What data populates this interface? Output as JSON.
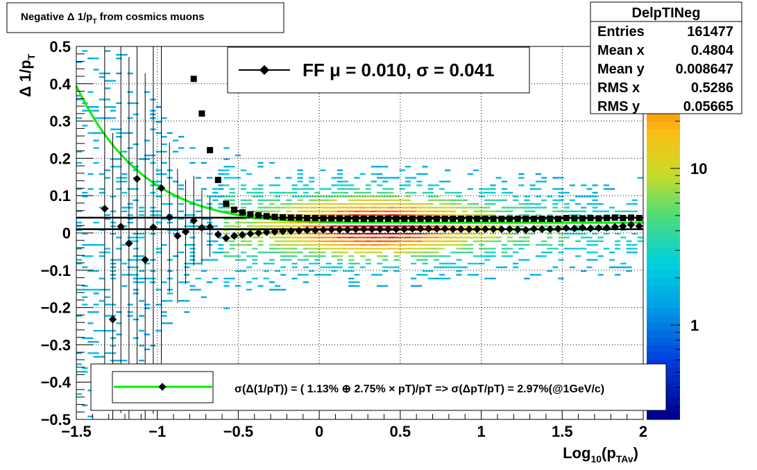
{
  "title_box": {
    "text_main": "Negative Δ 1/p",
    "text_sub": "T",
    "text_tail": " from cosmics muons"
  },
  "stats": {
    "name": "DelpTINeg",
    "rows": [
      {
        "label": "Entries",
        "value": "161477"
      },
      {
        "label": "Mean x",
        "value": "0.4804"
      },
      {
        "label": "Mean y",
        "value": "0.008647"
      },
      {
        "label": "RMS x",
        "value": "0.5286"
      },
      {
        "label": "RMS y",
        "value": "0.05665"
      }
    ]
  },
  "fit_legend": {
    "text": "FF μ =  0.010, σ =   0.041"
  },
  "resolution_legend": {
    "text": "σ(Δ(1/pT)) = ( 1.13% ⊕  2.75% × pT)/pT => σ(ΔpT/pT) =  2.97%(@1GeV/c)"
  },
  "axes": {
    "x_label_main": "Log",
    "x_label_sub1": "10",
    "x_label_mid": "(p",
    "x_label_sub2": "TAv",
    "x_label_end": ")",
    "y_label_main": "Δ 1/p",
    "y_label_sub": "T"
  },
  "colors": {
    "fit_curve": "#00ee00",
    "markers": "#000000",
    "frame": "#000000"
  },
  "chart_data": {
    "type": "heatmap",
    "x_range": [
      -1.5,
      2.0
    ],
    "y_range": [
      -0.5,
      0.5
    ],
    "x_ticks": [
      {
        "v": -1.5,
        "label": "−1.5"
      },
      {
        "v": -1.0,
        "label": "−1"
      },
      {
        "v": -0.5,
        "label": "−0.5"
      },
      {
        "v": 0.0,
        "label": "0"
      },
      {
        "v": 0.5,
        "label": "0.5"
      },
      {
        "v": 1.0,
        "label": "1"
      },
      {
        "v": 1.5,
        "label": "1.5"
      },
      {
        "v": 2.0,
        "label": "2"
      }
    ],
    "y_ticks": [
      {
        "v": 0.5,
        "label": "0.5"
      },
      {
        "v": 0.4,
        "label": "0.4"
      },
      {
        "v": 0.3,
        "label": "0.3"
      },
      {
        "v": 0.2,
        "label": "0.2"
      },
      {
        "v": 0.1,
        "label": "0.1"
      },
      {
        "v": 0.0,
        "label": "0"
      },
      {
        "v": -0.1,
        "label": "−0.1"
      },
      {
        "v": -0.2,
        "label": "−0.2"
      },
      {
        "v": -0.3,
        "label": "−0.3"
      },
      {
        "v": -0.4,
        "label": "−0.4"
      },
      {
        "v": -0.5,
        "label": "−0.5"
      }
    ],
    "z_scale": "log",
    "z_ticks": [
      {
        "v": 10,
        "label": "10"
      },
      {
        "v": 1,
        "label": "1"
      }
    ],
    "grid": true,
    "horizontal_lines": [
      0.01,
      0.041
    ],
    "mean_points": [
      {
        "x": -1.325,
        "y": 0.065,
        "err": 0.5
      },
      {
        "x": -1.275,
        "y": -0.232,
        "err": 0.5
      },
      {
        "x": -1.225,
        "y": 0.017,
        "err": 0.5
      },
      {
        "x": -1.175,
        "y": -0.028,
        "err": 0.5
      },
      {
        "x": -1.125,
        "y": 0.145,
        "err": 0.5
      },
      {
        "x": -1.075,
        "y": -0.072,
        "err": 0.5
      },
      {
        "x": -1.025,
        "y": 0.015,
        "err": 0.5
      },
      {
        "x": -0.975,
        "y": 0.12,
        "err": 0.5
      },
      {
        "x": -0.925,
        "y": 0.042,
        "err": 0.2
      },
      {
        "x": -0.875,
        "y": -0.008,
        "err": 0.18
      },
      {
        "x": -0.825,
        "y": 0.003,
        "err": 0.14
      },
      {
        "x": -0.775,
        "y": 0.033,
        "err": 0.12
      },
      {
        "x": -0.725,
        "y": 0.014,
        "err": 0.1
      },
      {
        "x": -0.675,
        "y": 0.016,
        "err": 0.08
      },
      {
        "x": -0.625,
        "y": -0.004,
        "err": 0.01
      },
      {
        "x": -0.575,
        "y": -0.014,
        "err": 0.005
      },
      {
        "x": -0.525,
        "y": -0.008,
        "err": 0.004
      },
      {
        "x": -0.475,
        "y": -0.005,
        "err": 0.003
      },
      {
        "x": -0.425,
        "y": -0.002,
        "err": 0.003
      },
      {
        "x": -0.375,
        "y": 0.0,
        "err": 0.002
      },
      {
        "x": -0.325,
        "y": 0.002,
        "err": 0.002
      },
      {
        "x": -0.275,
        "y": 0.003,
        "err": 0.002
      },
      {
        "x": -0.225,
        "y": 0.004,
        "err": 0.002
      },
      {
        "x": -0.175,
        "y": 0.005,
        "err": 0.002
      },
      {
        "x": -0.125,
        "y": 0.006,
        "err": 0.002
      },
      {
        "x": -0.075,
        "y": 0.007,
        "err": 0.002
      },
      {
        "x": -0.025,
        "y": 0.007,
        "err": 0.002
      },
      {
        "x": 0.025,
        "y": 0.008,
        "err": 0.002
      },
      {
        "x": 0.075,
        "y": 0.009,
        "err": 0.002
      },
      {
        "x": 0.125,
        "y": 0.009,
        "err": 0.002
      },
      {
        "x": 0.175,
        "y": 0.009,
        "err": 0.002
      },
      {
        "x": 0.225,
        "y": 0.01,
        "err": 0.002
      },
      {
        "x": 0.275,
        "y": 0.01,
        "err": 0.002
      },
      {
        "x": 0.325,
        "y": 0.01,
        "err": 0.002
      },
      {
        "x": 0.375,
        "y": 0.01,
        "err": 0.002
      },
      {
        "x": 0.425,
        "y": 0.01,
        "err": 0.002
      },
      {
        "x": 0.475,
        "y": 0.01,
        "err": 0.002
      },
      {
        "x": 0.525,
        "y": 0.01,
        "err": 0.002
      },
      {
        "x": 0.575,
        "y": 0.011,
        "err": 0.002
      },
      {
        "x": 0.625,
        "y": 0.011,
        "err": 0.002
      },
      {
        "x": 0.675,
        "y": 0.011,
        "err": 0.002
      },
      {
        "x": 0.725,
        "y": 0.011,
        "err": 0.002
      },
      {
        "x": 0.775,
        "y": 0.011,
        "err": 0.002
      },
      {
        "x": 0.825,
        "y": 0.01,
        "err": 0.002
      },
      {
        "x": 0.875,
        "y": 0.01,
        "err": 0.002
      },
      {
        "x": 0.925,
        "y": 0.01,
        "err": 0.002
      },
      {
        "x": 0.975,
        "y": 0.01,
        "err": 0.002
      },
      {
        "x": 1.025,
        "y": 0.01,
        "err": 0.002
      },
      {
        "x": 1.075,
        "y": 0.01,
        "err": 0.002
      },
      {
        "x": 1.125,
        "y": 0.01,
        "err": 0.002
      },
      {
        "x": 1.175,
        "y": 0.01,
        "err": 0.002
      },
      {
        "x": 1.225,
        "y": 0.009,
        "err": 0.002
      },
      {
        "x": 1.275,
        "y": 0.008,
        "err": 0.002
      },
      {
        "x": 1.325,
        "y": 0.011,
        "err": 0.002
      },
      {
        "x": 1.375,
        "y": 0.01,
        "err": 0.002
      },
      {
        "x": 1.425,
        "y": 0.01,
        "err": 0.002
      },
      {
        "x": 1.475,
        "y": 0.011,
        "err": 0.002
      },
      {
        "x": 1.525,
        "y": 0.013,
        "err": 0.002
      },
      {
        "x": 1.575,
        "y": 0.012,
        "err": 0.002
      },
      {
        "x": 1.625,
        "y": 0.014,
        "err": 0.002
      },
      {
        "x": 1.675,
        "y": 0.012,
        "err": 0.002
      },
      {
        "x": 1.725,
        "y": 0.013,
        "err": 0.002
      },
      {
        "x": 1.775,
        "y": 0.014,
        "err": 0.002
      },
      {
        "x": 1.825,
        "y": 0.016,
        "err": 0.002
      },
      {
        "x": 1.875,
        "y": 0.018,
        "err": 0.002
      },
      {
        "x": 1.925,
        "y": 0.022,
        "err": 0.002
      },
      {
        "x": 1.975,
        "y": 0.018,
        "err": 0.002
      }
    ],
    "sigma_points": [
      {
        "x": -0.775,
        "y": 0.413
      },
      {
        "x": -0.725,
        "y": 0.32
      },
      {
        "x": -0.675,
        "y": 0.222
      },
      {
        "x": -0.625,
        "y": 0.142
      },
      {
        "x": -0.575,
        "y": 0.078
      },
      {
        "x": -0.525,
        "y": 0.062
      },
      {
        "x": -0.475,
        "y": 0.055
      },
      {
        "x": -0.425,
        "y": 0.05
      },
      {
        "x": -0.375,
        "y": 0.047
      },
      {
        "x": -0.325,
        "y": 0.045
      },
      {
        "x": -0.275,
        "y": 0.043
      },
      {
        "x": -0.225,
        "y": 0.042
      },
      {
        "x": -0.175,
        "y": 0.041
      },
      {
        "x": -0.125,
        "y": 0.041
      },
      {
        "x": -0.075,
        "y": 0.04
      },
      {
        "x": -0.025,
        "y": 0.04
      },
      {
        "x": 0.025,
        "y": 0.039
      },
      {
        "x": 0.075,
        "y": 0.039
      },
      {
        "x": 0.125,
        "y": 0.039
      },
      {
        "x": 0.175,
        "y": 0.038
      },
      {
        "x": 0.225,
        "y": 0.038
      },
      {
        "x": 0.275,
        "y": 0.038
      },
      {
        "x": 0.325,
        "y": 0.038
      },
      {
        "x": 0.375,
        "y": 0.038
      },
      {
        "x": 0.425,
        "y": 0.038
      },
      {
        "x": 0.475,
        "y": 0.038
      },
      {
        "x": 0.525,
        "y": 0.038
      },
      {
        "x": 0.575,
        "y": 0.038
      },
      {
        "x": 0.625,
        "y": 0.038
      },
      {
        "x": 0.675,
        "y": 0.038
      },
      {
        "x": 0.725,
        "y": 0.038
      },
      {
        "x": 0.775,
        "y": 0.038
      },
      {
        "x": 0.825,
        "y": 0.038
      },
      {
        "x": 0.875,
        "y": 0.038
      },
      {
        "x": 0.925,
        "y": 0.038
      },
      {
        "x": 0.975,
        "y": 0.038
      },
      {
        "x": 1.025,
        "y": 0.038
      },
      {
        "x": 1.075,
        "y": 0.038
      },
      {
        "x": 1.125,
        "y": 0.038
      },
      {
        "x": 1.175,
        "y": 0.038
      },
      {
        "x": 1.225,
        "y": 0.038
      },
      {
        "x": 1.275,
        "y": 0.038
      },
      {
        "x": 1.325,
        "y": 0.038
      },
      {
        "x": 1.375,
        "y": 0.038
      },
      {
        "x": 1.425,
        "y": 0.038
      },
      {
        "x": 1.475,
        "y": 0.038
      },
      {
        "x": 1.525,
        "y": 0.04
      },
      {
        "x": 1.575,
        "y": 0.039
      },
      {
        "x": 1.625,
        "y": 0.039
      },
      {
        "x": 1.675,
        "y": 0.04
      },
      {
        "x": 1.725,
        "y": 0.039
      },
      {
        "x": 1.775,
        "y": 0.04
      },
      {
        "x": 1.825,
        "y": 0.041
      },
      {
        "x": 1.875,
        "y": 0.04
      },
      {
        "x": 1.925,
        "y": 0.041
      },
      {
        "x": 1.975,
        "y": 0.04
      }
    ],
    "fit_function": {
      "form": "sqrt((a/p)^2 + b^2) in delta(1/pT)",
      "a_percent": 1.13,
      "b_percent": 2.75
    }
  }
}
